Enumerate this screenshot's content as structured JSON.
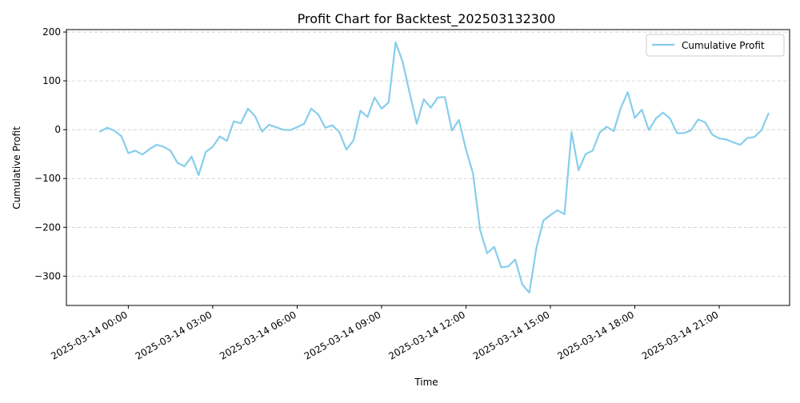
{
  "chart_data": {
    "type": "line",
    "title": "Profit Chart for Backtest_202503132300",
    "xlabel": "Time",
    "ylabel": "Cumulative Profit",
    "ylim": [
      -360,
      205
    ],
    "xlim_hours": [
      -2.2,
      23.5
    ],
    "x_origin": "2025-03-14 00:00",
    "yticks": [
      200,
      100,
      0,
      -100,
      -200,
      -300
    ],
    "ytick_labels": [
      "200",
      "100",
      "0",
      "−100",
      "−200",
      "−300"
    ],
    "xticks_hours": [
      0,
      3,
      6,
      9,
      12,
      15,
      18,
      21
    ],
    "xtick_labels": [
      "2025-03-14 00:00",
      "2025-03-14 03:00",
      "2025-03-14 06:00",
      "2025-03-14 09:00",
      "2025-03-14 12:00",
      "2025-03-14 15:00",
      "2025-03-14 18:00",
      "2025-03-14 21:00"
    ],
    "grid": "y-dashed",
    "legend": "top-right",
    "series": [
      {
        "name": "Cumulative Profit",
        "color": "#87ceeb",
        "x_start_hours": -1.0,
        "x_step_hours": 0.25,
        "values": [
          -4,
          4,
          -2,
          -13,
          -48,
          -43,
          -51,
          -40,
          -31,
          -35,
          -43,
          -68,
          -75,
          -55,
          -93,
          -46,
          -35,
          -14,
          -23,
          17,
          13,
          43,
          28,
          -4,
          10,
          5,
          0,
          -1,
          5,
          12,
          43,
          31,
          4,
          9,
          -5,
          -41,
          -22,
          39,
          26,
          66,
          43,
          56,
          179,
          139,
          75,
          12,
          62,
          45,
          66,
          67,
          -2,
          20,
          -41,
          -90,
          -205,
          -253,
          -240,
          -282,
          -280,
          -266,
          -317,
          -334,
          -243,
          -186,
          -175,
          -165,
          -173,
          -5,
          -83,
          -50,
          -43,
          -6,
          6,
          -3,
          44,
          77,
          24,
          41,
          -1,
          23,
          35,
          23,
          -7,
          -7,
          -1,
          21,
          15,
          -10,
          -18,
          -20,
          -26,
          -31,
          -17,
          -15,
          -1,
          33
        ]
      }
    ]
  }
}
